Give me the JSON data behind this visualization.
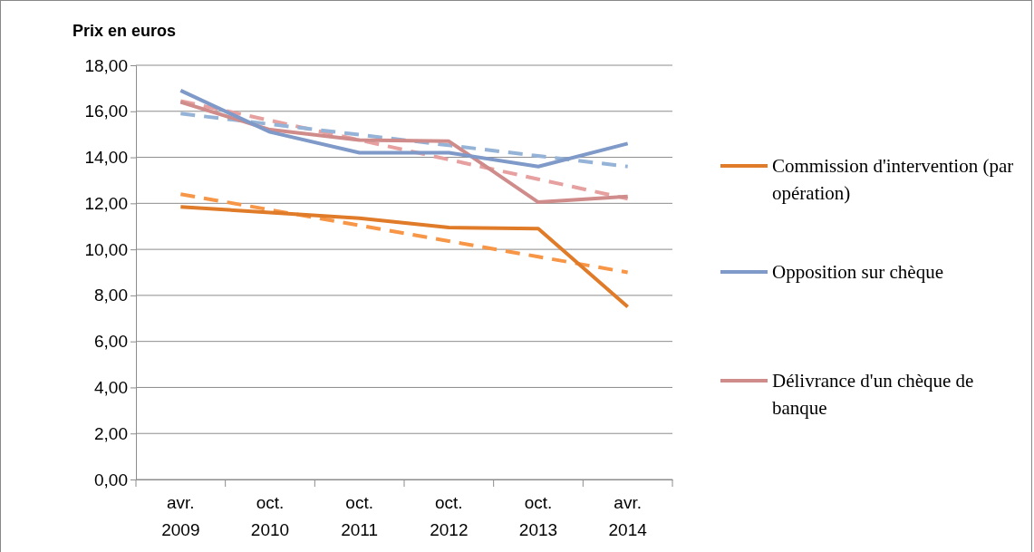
{
  "chart_data": {
    "type": "line",
    "title": "Prix en euros",
    "categories": [
      "avr. 2009",
      "oct. 2010",
      "oct. 2011",
      "oct. 2012",
      "oct. 2013",
      "avr. 2014"
    ],
    "series": [
      {
        "name": "Commission d'intervention (par opération)",
        "color": "#e07b29",
        "values": [
          11.85,
          11.6,
          11.35,
          10.95,
          10.9,
          7.5
        ]
      },
      {
        "name": "Opposition sur chèque",
        "color": "#7f9ac8",
        "values": [
          16.9,
          15.1,
          14.2,
          14.2,
          13.6,
          14.6
        ]
      },
      {
        "name": "Délivrance d'un chèque de banque",
        "color": "#d08b8b",
        "values": [
          16.4,
          15.2,
          14.75,
          14.7,
          12.05,
          12.3
        ]
      },
      {
        "color": "#f79646",
        "line_style": "dashed",
        "values": [
          12.4,
          11.72,
          11.04,
          10.36,
          9.68,
          9.0
        ]
      },
      {
        "color": "#95b3d7",
        "line_style": "dashed",
        "values": [
          15.9,
          15.44,
          14.98,
          14.52,
          14.06,
          13.6
        ]
      },
      {
        "color": "#e6a09f",
        "line_style": "dashed",
        "values": [
          16.45,
          15.6,
          14.75,
          13.9,
          13.05,
          12.2
        ]
      }
    ],
    "ylim": [
      0,
      18
    ],
    "yticks": [
      {
        "value": 0,
        "label": "0,00"
      },
      {
        "value": 2,
        "label": "2,00"
      },
      {
        "value": 4,
        "label": "4,00"
      },
      {
        "value": 6,
        "label": "6,00"
      },
      {
        "value": 8,
        "label": "8,00"
      },
      {
        "value": 10,
        "label": "10,00"
      },
      {
        "value": 12,
        "label": "12,00"
      },
      {
        "value": 14,
        "label": "14,00"
      },
      {
        "value": 16,
        "label": "16,00"
      },
      {
        "value": 18,
        "label": "18,00"
      }
    ],
    "grid": "y",
    "legend": "right",
    "marker": "none",
    "line_style": "solid"
  }
}
